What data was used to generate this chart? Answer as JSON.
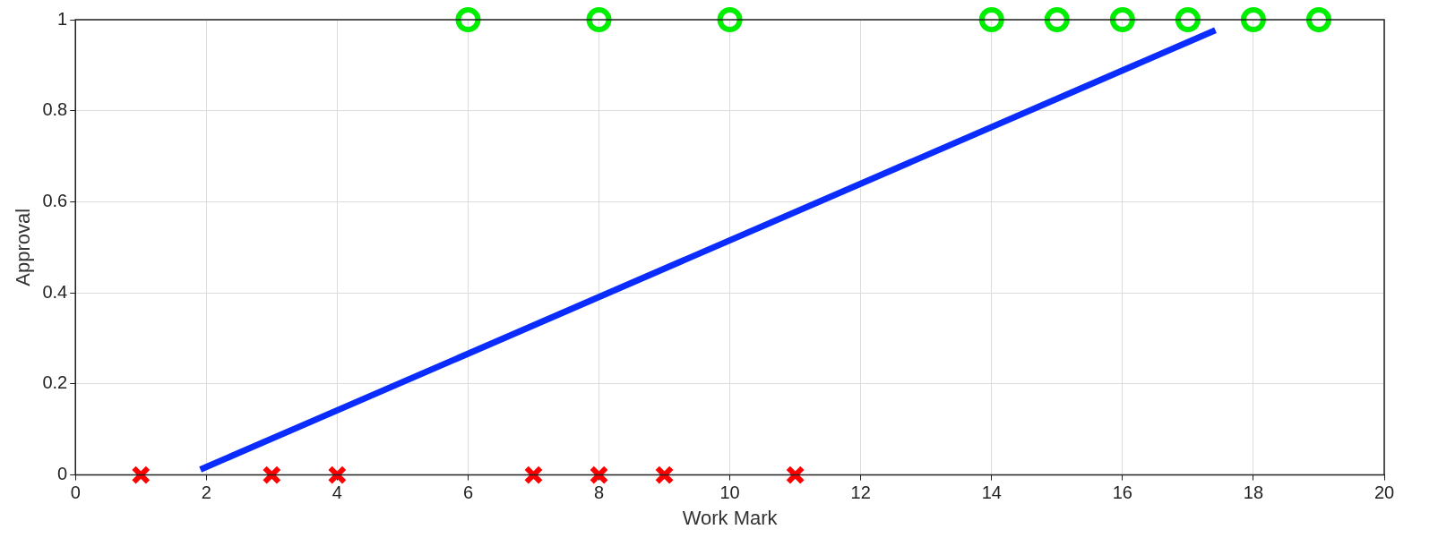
{
  "chart_data": {
    "type": "scatter",
    "xlabel": "Work Mark",
    "ylabel": "Approval",
    "xlim": [
      0,
      20
    ],
    "xticks": [
      0,
      2,
      4,
      6,
      8,
      10,
      12,
      14,
      16,
      18,
      20
    ],
    "ylim": [
      0,
      1
    ],
    "yticks": [
      0,
      0.2,
      0.4,
      0.6,
      0.8,
      1
    ],
    "grid": true,
    "legend": false,
    "series": [
      {
        "type": "scatter",
        "color": "#ff0000",
        "marker": "cross",
        "x": [
          1,
          3,
          4,
          7,
          8,
          9,
          11
        ],
        "values": [
          0,
          0,
          0,
          0,
          0,
          0,
          0
        ]
      },
      {
        "type": "scatter",
        "color": "#00ee00",
        "marker": "circle",
        "x": [
          6,
          8,
          10,
          14,
          15,
          16,
          17,
          18,
          19
        ],
        "values": [
          1,
          1,
          1,
          1,
          1,
          1,
          1,
          1,
          1
        ]
      },
      {
        "type": "line",
        "color": "#0a2cff",
        "marker": "none",
        "line_style": "solid",
        "x": [
          1.91,
          17.42
        ],
        "values": [
          0.012,
          0.977
        ]
      }
    ]
  }
}
